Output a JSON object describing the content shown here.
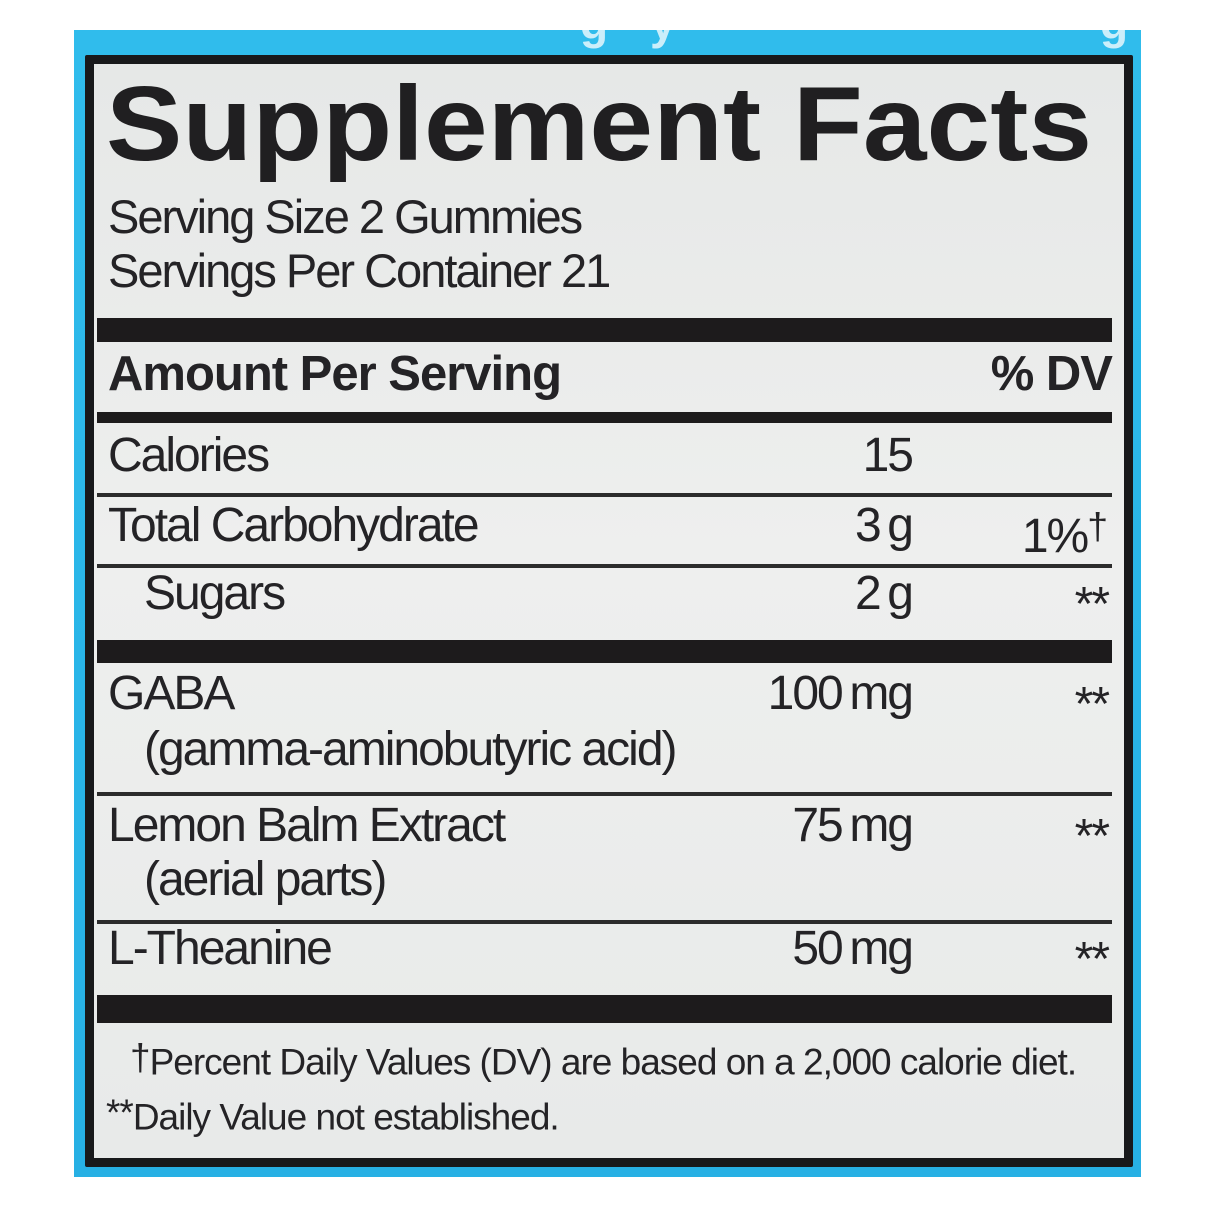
{
  "panel": {
    "top_fragments": [
      "g",
      "y",
      "g"
    ],
    "color_cyan": "#29b5e8"
  },
  "label": {
    "title": "Supplement Facts",
    "serving_size": "Serving Size 2 Gummies",
    "servings_per_container": "Servings Per Container 21",
    "header": {
      "amount_per_serving": "Amount Per Serving",
      "dv": "% DV"
    },
    "rows": [
      {
        "name": "Calories",
        "amount": "15",
        "dv": "",
        "dv_sup": ""
      },
      {
        "name": "Total Carbohydrate",
        "amount": "3 g",
        "dv": "1%",
        "dv_sup": "†"
      },
      {
        "name": "Sugars",
        "amount": "2 g",
        "dv": "**",
        "dv_sup": ""
      },
      {
        "name": "GABA",
        "sub": "(gamma-aminobutyric acid)",
        "amount": "100 mg",
        "dv": "**",
        "dv_sup": ""
      },
      {
        "name": "Lemon Balm Extract",
        "sub": "(aerial parts)",
        "amount": "75 mg",
        "dv": "**",
        "dv_sup": ""
      },
      {
        "name": "L-Theanine",
        "amount": "50 mg",
        "dv": "**",
        "dv_sup": ""
      }
    ],
    "footnotes": [
      {
        "marker": "†",
        "text": "Percent Daily Values (DV) are based on a 2,000 calorie diet."
      },
      {
        "marker": "**",
        "text": "Daily Value not established."
      }
    ],
    "colors": {
      "label_bg": "#eaecea",
      "border": "#18191b",
      "bar": "#1d1b1c",
      "text": "#242326"
    }
  }
}
